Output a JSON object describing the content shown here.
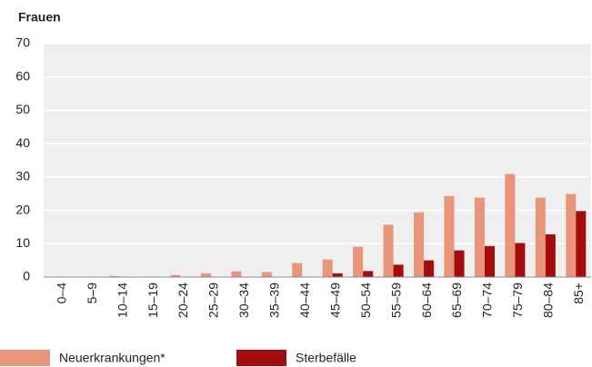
{
  "chart_data": {
    "type": "bar",
    "title": "Frauen",
    "categories": [
      "0–4",
      "5–9",
      "10–14",
      "15–19",
      "20–24",
      "25–29",
      "30–34",
      "35–39",
      "40–44",
      "45–49",
      "50–54",
      "55–59",
      "60–64",
      "65–69",
      "70–74",
      "75–79",
      "80–84",
      "85+"
    ],
    "series": [
      {
        "name": "Neuerkrankungen*",
        "color": "#e8957a",
        "values": [
          0,
          0,
          0.3,
          0,
          0.6,
          1.1,
          1.7,
          1.5,
          4.2,
          5.3,
          9.1,
          15.7,
          19.4,
          24.3,
          23.8,
          30.9,
          23.8,
          24.9
        ]
      },
      {
        "name": "Sterbefälle",
        "color": "#a30d0d",
        "values": [
          0,
          0,
          0,
          0,
          0,
          0,
          0,
          0,
          0,
          1.1,
          1.8,
          3.7,
          5.0,
          8.0,
          9.3,
          10.2,
          12.8,
          19.8
        ]
      }
    ],
    "ylim": [
      0,
      70
    ],
    "yticks": [
      0,
      10,
      20,
      30,
      40,
      50,
      60,
      70
    ],
    "grid": true
  }
}
